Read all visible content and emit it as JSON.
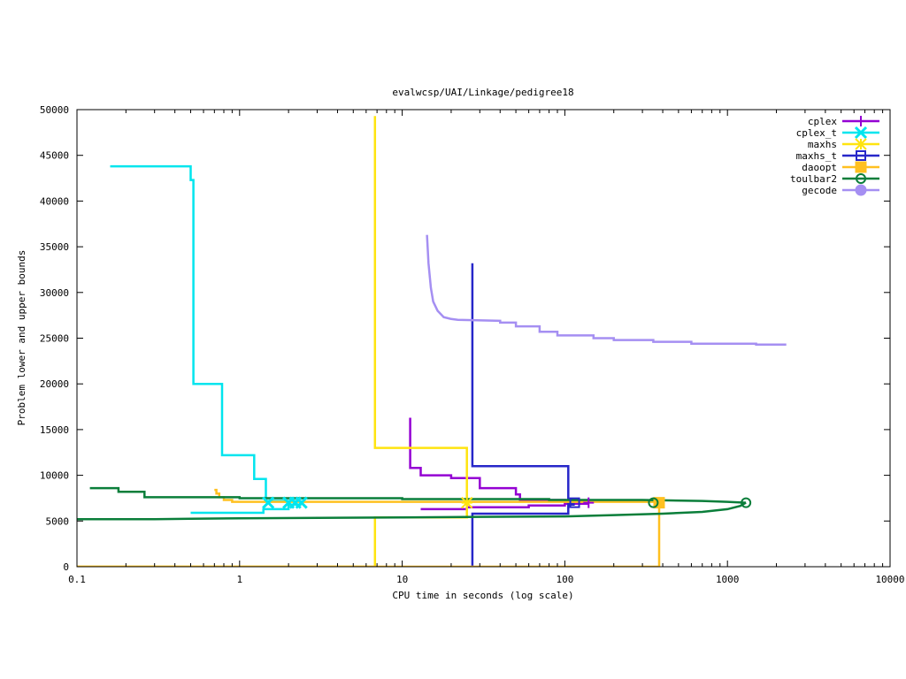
{
  "chart_data": {
    "type": "line",
    "title": "evalwcsp/UAI/Linkage/pedigree18",
    "xlabel": "CPU time in seconds (log scale)",
    "ylabel": "Problem lower and upper bounds",
    "xscale": "log",
    "xlim": [
      0.1,
      10000
    ],
    "ylim": [
      0,
      50000
    ],
    "xticks": [
      "0.1",
      "1",
      "10",
      "100",
      "1000",
      "10000"
    ],
    "yticks": [
      "0",
      "5000",
      "10000",
      "15000",
      "20000",
      "25000",
      "30000",
      "35000",
      "40000",
      "45000",
      "50000"
    ],
    "legend_position": "top-right",
    "grid": false,
    "series": [
      {
        "name": "cplex",
        "color": "#9400d3",
        "marker": "plus",
        "points": [
          [
            11.2,
            16300
          ],
          [
            11.2,
            10800
          ],
          [
            13,
            10800
          ],
          [
            13,
            10000
          ],
          [
            20,
            10000
          ],
          [
            20,
            9700
          ],
          [
            30,
            9700
          ],
          [
            30,
            8600
          ],
          [
            50,
            8600
          ],
          [
            50,
            7900
          ],
          [
            53,
            7900
          ],
          [
            53,
            7300
          ],
          [
            100,
            7300
          ],
          [
            100,
            7100
          ],
          [
            140,
            7100
          ]
        ],
        "lower": [
          [
            13,
            6300
          ],
          [
            25,
            6300
          ],
          [
            25,
            6500
          ],
          [
            60,
            6500
          ],
          [
            60,
            6700
          ],
          [
            100,
            6700
          ],
          [
            100,
            6900
          ],
          [
            140,
            6900
          ]
        ],
        "marker_points": [
          [
            140,
            7000
          ]
        ]
      },
      {
        "name": "cplex_t",
        "color": "#00e5ee",
        "marker": "x",
        "points": [
          [
            0.16,
            43800
          ],
          [
            0.5,
            43800
          ],
          [
            0.5,
            42300
          ],
          [
            0.52,
            42300
          ],
          [
            0.52,
            20000
          ],
          [
            0.78,
            20000
          ],
          [
            0.78,
            12200
          ],
          [
            1.23,
            12200
          ],
          [
            1.23,
            9600
          ],
          [
            1.45,
            9600
          ],
          [
            1.45,
            7200
          ],
          [
            2.4,
            7200
          ]
        ],
        "lower": [
          [
            0.5,
            5900
          ],
          [
            1.4,
            5900
          ],
          [
            1.4,
            6300
          ],
          [
            2.0,
            6300
          ],
          [
            2.0,
            6800
          ],
          [
            2.4,
            6800
          ]
        ],
        "marker_points": [
          [
            1.5,
            7000
          ],
          [
            2.0,
            7000
          ],
          [
            2.2,
            7000
          ],
          [
            2.4,
            7000
          ]
        ]
      },
      {
        "name": "maxhs",
        "color": "#ffe40f",
        "marker": "star",
        "points": [
          [
            6.8,
            49300
          ],
          [
            6.8,
            13000
          ],
          [
            25,
            13000
          ],
          [
            25,
            7000
          ]
        ],
        "lower": [
          [
            0.1,
            0
          ],
          [
            6.8,
            0
          ],
          [
            6.8,
            5400
          ],
          [
            25,
            5400
          ],
          [
            25,
            6800
          ]
        ],
        "marker_points": [
          [
            25,
            7000
          ]
        ]
      },
      {
        "name": "maxhs_t",
        "color": "#2727c9",
        "marker": "square",
        "points": [
          [
            27,
            33200
          ],
          [
            27,
            11000
          ],
          [
            105,
            11000
          ],
          [
            105,
            7000
          ],
          [
            115,
            7000
          ]
        ],
        "lower": [
          [
            27,
            0
          ],
          [
            27,
            5800
          ],
          [
            105,
            5800
          ],
          [
            105,
            6800
          ],
          [
            115,
            6800
          ]
        ],
        "marker_points": [
          [
            115,
            7000
          ]
        ]
      },
      {
        "name": "daoopt",
        "color": "#ffc020",
        "marker": "filled-square",
        "points": [
          [
            0.7,
            8400
          ],
          [
            0.72,
            8400
          ],
          [
            0.72,
            8000
          ],
          [
            0.75,
            8000
          ],
          [
            0.75,
            7600
          ],
          [
            0.8,
            7600
          ],
          [
            0.8,
            7300
          ],
          [
            0.9,
            7300
          ],
          [
            0.9,
            7100
          ],
          [
            380,
            7100
          ]
        ],
        "lower": [
          [
            0.1,
            0
          ],
          [
            380,
            0
          ],
          [
            380,
            7000
          ]
        ],
        "marker_points": [
          [
            380,
            7000
          ]
        ]
      },
      {
        "name": "toulbar2",
        "color": "#0a7e3a",
        "marker": "circle",
        "points": [
          [
            0.12,
            8600
          ],
          [
            0.18,
            8600
          ],
          [
            0.18,
            8200
          ],
          [
            0.26,
            8200
          ],
          [
            0.26,
            7600
          ],
          [
            1.0,
            7600
          ],
          [
            1.0,
            7500
          ],
          [
            10,
            7500
          ],
          [
            10,
            7400
          ],
          [
            80,
            7400
          ],
          [
            80,
            7300
          ],
          [
            300,
            7300
          ],
          [
            700,
            7200
          ],
          [
            1000,
            7100
          ],
          [
            1300,
            7000
          ]
        ],
        "lower": [
          [
            0.1,
            5200
          ],
          [
            0.3,
            5200
          ],
          [
            0.5,
            5250
          ],
          [
            1,
            5300
          ],
          [
            10,
            5400
          ],
          [
            30,
            5450
          ],
          [
            100,
            5500
          ],
          [
            200,
            5650
          ],
          [
            400,
            5800
          ],
          [
            700,
            6000
          ],
          [
            1000,
            6300
          ],
          [
            1200,
            6650
          ],
          [
            1300,
            7000
          ]
        ],
        "marker_points": [
          [
            350,
            7000
          ],
          [
            1300,
            7000
          ]
        ]
      },
      {
        "name": "gecode",
        "color": "#a58ff2",
        "marker": "filled-circle",
        "points": [
          [
            14.2,
            36300
          ],
          [
            14.5,
            33200
          ],
          [
            15,
            30500
          ],
          [
            15.5,
            29000
          ],
          [
            16.5,
            28000
          ],
          [
            18,
            27300
          ],
          [
            20,
            27100
          ],
          [
            22,
            27000
          ],
          [
            40,
            26900
          ],
          [
            40,
            26700
          ],
          [
            50,
            26700
          ],
          [
            50,
            26300
          ],
          [
            70,
            26300
          ],
          [
            70,
            25700
          ],
          [
            90,
            25700
          ],
          [
            90,
            25300
          ],
          [
            150,
            25300
          ],
          [
            150,
            25000
          ],
          [
            200,
            25000
          ],
          [
            200,
            24800
          ],
          [
            350,
            24800
          ],
          [
            350,
            24600
          ],
          [
            600,
            24600
          ],
          [
            600,
            24400
          ],
          [
            1500,
            24400
          ],
          [
            1500,
            24300
          ],
          [
            2300,
            24300
          ]
        ],
        "lower": [],
        "marker_points": []
      }
    ]
  }
}
